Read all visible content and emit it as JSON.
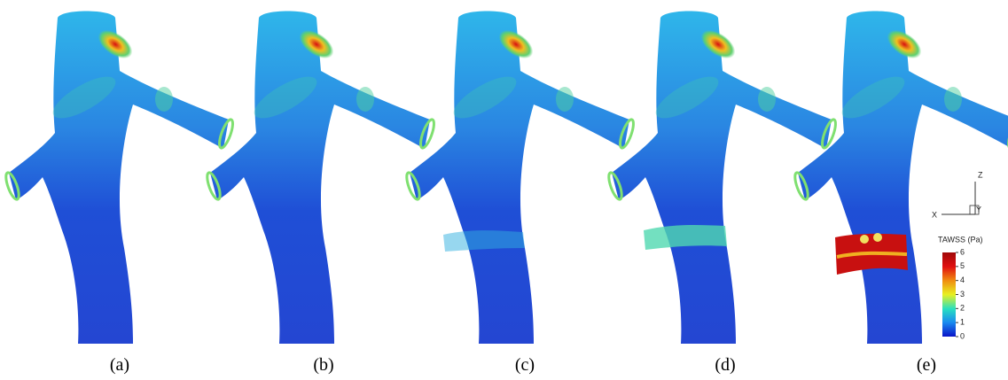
{
  "panels": [
    {
      "label": "(a)"
    },
    {
      "label": "(b)"
    },
    {
      "label": "(c)"
    },
    {
      "label": "(d)"
    },
    {
      "label": "(e)"
    }
  ],
  "axes_triad": {
    "x": "X",
    "y": "Y",
    "z": "Z"
  },
  "colorbar": {
    "title": "TAWSS (Pa)",
    "ticks": [
      0,
      1,
      2,
      3,
      4,
      5,
      6
    ]
  }
}
